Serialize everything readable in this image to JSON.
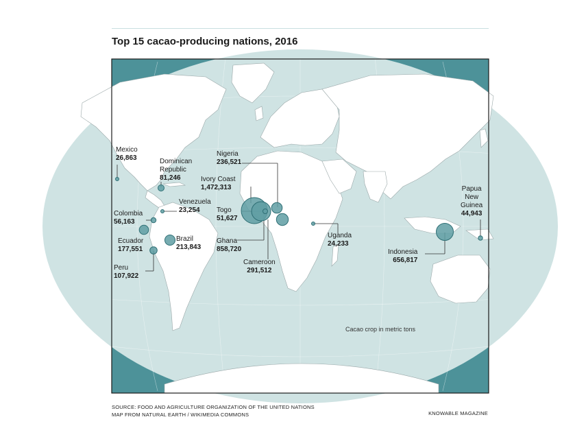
{
  "title": "Top 15 cacao-producing nations, 2016",
  "legend_note": "Cacao crop in metric tons",
  "source_lines": [
    "SOURCE: FOOD AND AGRICULTURE ORGANIZATION OF THE UNITED NATIONS",
    "MAP FROM NATURAL EARTH / WIKIMEDIA COMMONS"
  ],
  "credit": "KNOWABLE MAGAZINE",
  "colors": {
    "ocean": "#cfe3e3",
    "corner": "#4d9299",
    "land": "#ffffff",
    "bubble": "#5f9ea3",
    "bubble_stroke": "#2f6f75"
  },
  "countries": {
    "mexico": {
      "name": "Mexico",
      "value": "26,863"
    },
    "dominican": {
      "name_lines": [
        "Dominican",
        "Republic"
      ],
      "value": "81,246"
    },
    "venezuela": {
      "name": "Venezuela",
      "value": "23,254"
    },
    "colombia": {
      "name": "Colombia",
      "value": "56,163"
    },
    "ecuador": {
      "name": "Ecuador",
      "value": "177,551"
    },
    "brazil": {
      "name": "Brazil",
      "value": "213,843"
    },
    "peru": {
      "name": "Peru",
      "value": "107,922"
    },
    "nigeria": {
      "name": "Nigeria",
      "value": "236,521"
    },
    "ivory": {
      "name": "Ivory Coast",
      "value": "1,472,313"
    },
    "togo": {
      "name": "Togo",
      "value": "51,627"
    },
    "ghana": {
      "name": "Ghana",
      "value": "858,720"
    },
    "cameroon": {
      "name": "Cameroon",
      "value": "291,512"
    },
    "uganda": {
      "name": "Uganda",
      "value": "24,233"
    },
    "indonesia": {
      "name": "Indonesia",
      "value": "656,817"
    },
    "png": {
      "name_lines": [
        "Papua",
        "New",
        "Guinea"
      ],
      "value": "44,943"
    }
  }
}
